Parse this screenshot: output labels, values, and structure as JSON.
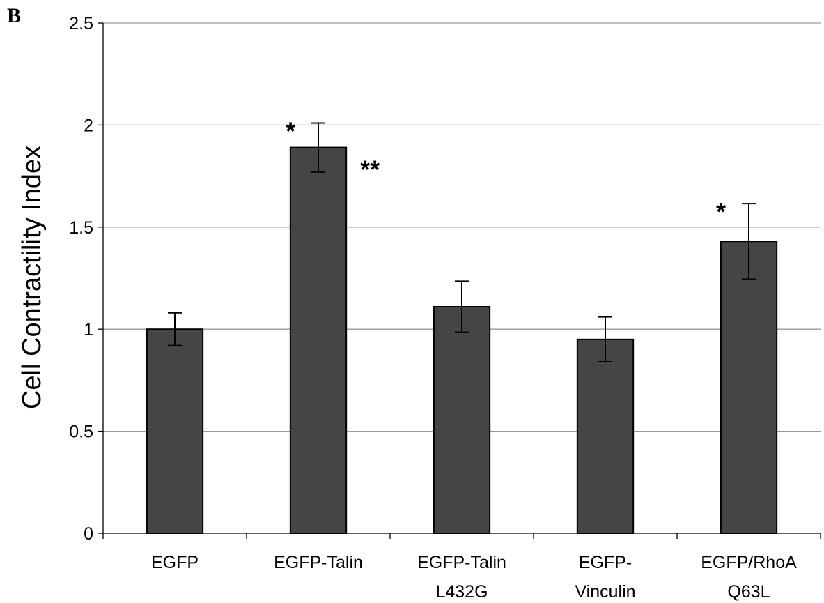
{
  "panel_label": "B",
  "chart_data": {
    "type": "bar",
    "title": "",
    "xlabel": "",
    "ylabel": "Cell Contractility Index",
    "ylim": [
      0,
      2.5
    ],
    "yticks": [
      0,
      0.5,
      1,
      1.5,
      2,
      2.5
    ],
    "ytick_labels": [
      "0",
      "0.5",
      "1",
      "1.5",
      "2",
      "2.5"
    ],
    "grid": true,
    "categories": [
      [
        "EGFP"
      ],
      [
        "EGFP-Talin"
      ],
      [
        "EGFP-Talin",
        "L432G"
      ],
      [
        "EGFP-",
        "Vinculin"
      ],
      [
        "EGFP/RhoA",
        "Q63L"
      ]
    ],
    "values": [
      1.0,
      1.89,
      1.11,
      0.95,
      1.43
    ],
    "errors": [
      0.08,
      0.12,
      0.125,
      0.11,
      0.185
    ],
    "annotations": [
      {
        "category_index": 1,
        "text": "*",
        "placement": "above-left"
      },
      {
        "category_index": 1,
        "text": "**",
        "placement": "right"
      },
      {
        "category_index": 4,
        "text": "*",
        "placement": "above-left"
      }
    ],
    "bar_color": "#454545",
    "edge_color": "#000000",
    "grid_color": "#9a9a9a"
  }
}
